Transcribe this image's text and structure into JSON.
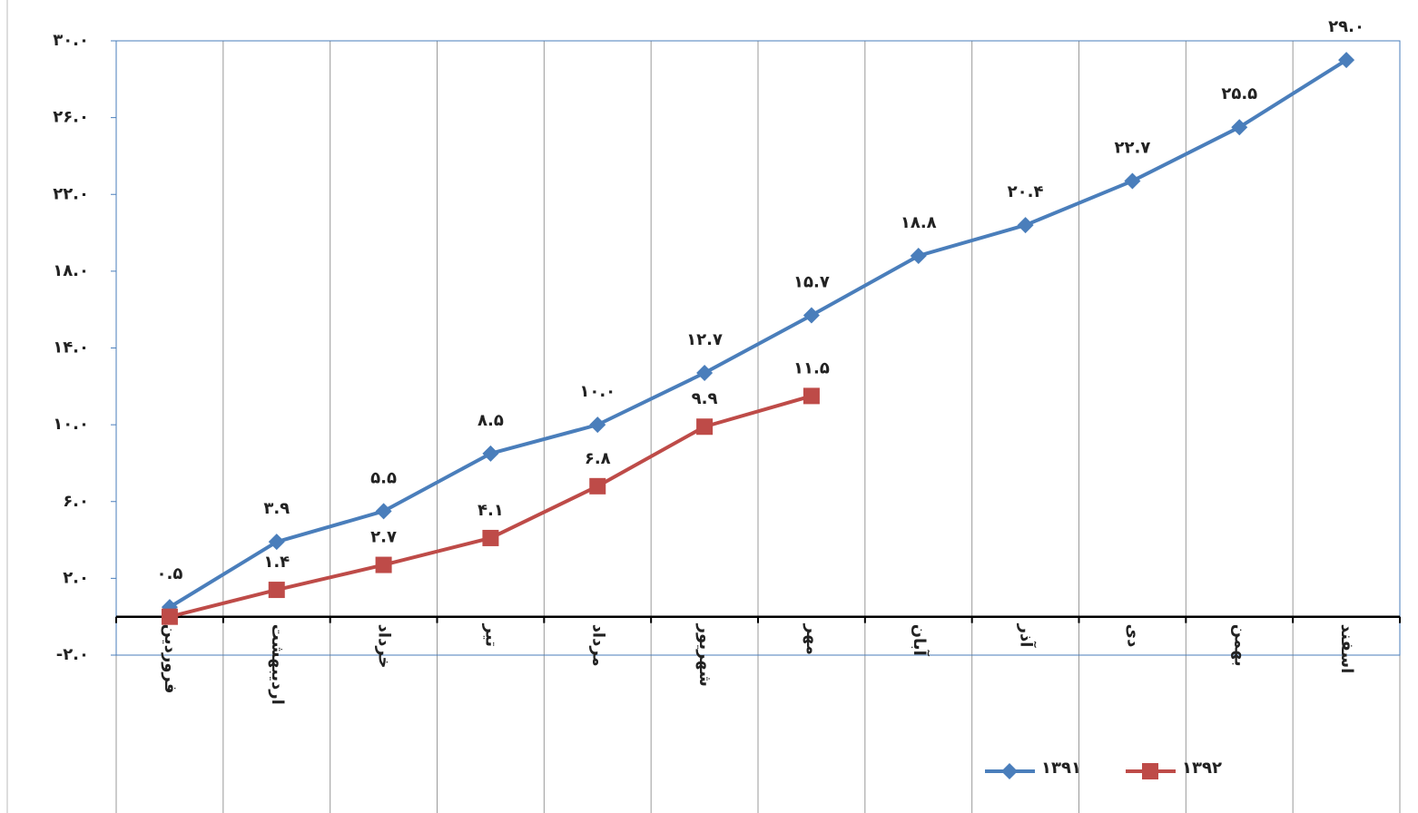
{
  "chart_data": {
    "type": "line",
    "categories": [
      "فروردین",
      "اردیبهشت",
      "خرداد",
      "تیر",
      "مرداد",
      "شهریور",
      "مهر",
      "آبان",
      "آذر",
      "دی",
      "بهمن",
      "اسفند"
    ],
    "series": [
      {
        "name": "۱۳۹۱",
        "color": "#4a7ebb",
        "marker": "diamond",
        "values": [
          0.5,
          3.9,
          5.5,
          8.5,
          10.0,
          12.7,
          15.7,
          18.8,
          20.4,
          22.7,
          25.5,
          29.0
        ],
        "value_labels": [
          "۰.۵",
          "۳.۹",
          "۵.۵",
          "۸.۵",
          "۱۰.۰",
          "۱۲.۷",
          "۱۵.۷",
          "۱۸.۸",
          "۲۰.۴",
          "۲۲.۷",
          "۲۵.۵",
          "۲۹.۰"
        ]
      },
      {
        "name": "۱۳۹۲",
        "color": "#be4b48",
        "marker": "square",
        "values": [
          0,
          1.4,
          2.7,
          4.1,
          6.8,
          9.9,
          11.5,
          null,
          null,
          null,
          null,
          null
        ],
        "value_labels": [
          null,
          "۱.۴",
          "۲.۷",
          "۴.۱",
          "۶.۸",
          "۹.۹",
          "۱۱.۵",
          null,
          null,
          null,
          null,
          null
        ]
      }
    ],
    "ylim": [
      -2,
      30
    ],
    "yticks": [
      {
        "value": -2,
        "label": "-۲.۰"
      },
      {
        "value": 2,
        "label": "۲.۰"
      },
      {
        "value": 6,
        "label": "۶.۰"
      },
      {
        "value": 10,
        "label": "۱۰.۰"
      },
      {
        "value": 14,
        "label": "۱۴.۰"
      },
      {
        "value": 18,
        "label": "۱۸.۰"
      },
      {
        "value": 22,
        "label": "۲۲.۰"
      },
      {
        "value": 26,
        "label": "۲۶.۰"
      },
      {
        "value": 30,
        "label": "۳۰.۰"
      }
    ],
    "grid": false,
    "category_grid": true,
    "legend": "bottom"
  }
}
